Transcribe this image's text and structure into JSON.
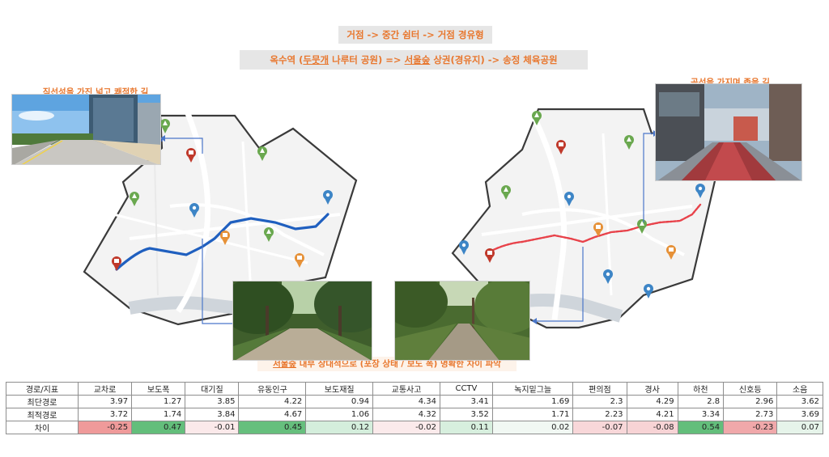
{
  "titles": {
    "line1": "거점 -> 중간 쉼터 -> 거점 경유형",
    "line2_a": "옥수역 (",
    "line2_b": "두뭇개",
    "line2_c": " 나루터 공원)  =>  ",
    "line2_d": "서울숲",
    "line2_e": " 상권(경유지) -> 송정 체육공원"
  },
  "captions": {
    "left": "직선성을 가진 넓고 쾌적한 길",
    "right": "곡선을 가지며 좁을 길",
    "bottom_a": "서울숲",
    "bottom_b": " 내부 상대적으로  (포장 상태 / 보도 폭)  명확한 차이 파악"
  },
  "map_icons": {
    "pins": [
      "bus-stop-pin",
      "park-pin",
      "water-pin",
      "convenience-store-pin"
    ],
    "colors": {
      "bus": "#c0392b",
      "park": "#6aa84f",
      "water": "#3d85c6",
      "store": "#e69138"
    }
  },
  "routes": {
    "shortest_color": "#1f5fbf",
    "optimal_color": "#e8424a"
  },
  "table": {
    "headers": [
      "경로/지표",
      "교차로",
      "보도폭",
      "대기질",
      "유동인구",
      "보도재질",
      "교통사고",
      "CCTV",
      "녹지밑그늘",
      "편의점",
      "경사",
      "하천",
      "신호등",
      "소음"
    ],
    "rows": [
      {
        "label": "최단경로",
        "values": [
          "3.97",
          "1.27",
          "3.85",
          "4.22",
          "0.94",
          "4.34",
          "3.41",
          "1.69",
          "2.3",
          "4.29",
          "2.8",
          "2.96",
          "3.62"
        ]
      },
      {
        "label": "최적경로",
        "values": [
          "3.72",
          "1.74",
          "3.84",
          "4.67",
          "1.06",
          "4.32",
          "3.52",
          "1.71",
          "2.23",
          "4.21",
          "3.34",
          "2.73",
          "3.69"
        ]
      },
      {
        "label": "차이",
        "values": [
          "-0.25",
          "0.47",
          "-0.01",
          "0.45",
          "0.12",
          "-0.02",
          "0.11",
          "0.02",
          "-0.07",
          "-0.08",
          "0.54",
          "-0.23",
          "0.07"
        ]
      }
    ],
    "diff_colors": [
      "#ef9a9a",
      "#63be7b",
      "#fbe9ea",
      "#66bf7d",
      "#d4eedc",
      "#fbeaeb",
      "#d7efde",
      "#f1f8f3",
      "#f8d7d9",
      "#f7d3d5",
      "#63be7b",
      "#f0a8aa",
      "#e6f4ea"
    ]
  }
}
